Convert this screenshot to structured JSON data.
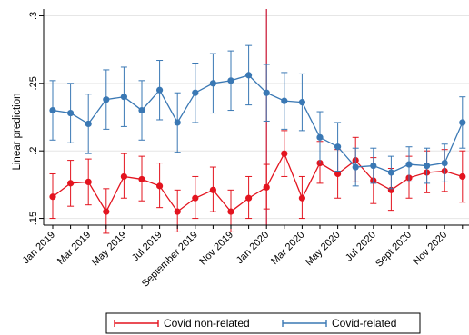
{
  "chart_data": {
    "type": "line",
    "title": "",
    "xlabel": "",
    "ylabel": "Linear prediction",
    "ylim": [
      0.145,
      0.305
    ],
    "yticks": [
      0.15,
      0.2,
      0.25,
      0.3
    ],
    "ytick_labels": [
      ".15",
      ".2",
      ".25",
      ".3"
    ],
    "x": [
      "Jan 2019",
      "Feb 2019",
      "Mar 2019",
      "Apr 2019",
      "May 2019",
      "Jun 2019",
      "Jul 2019",
      "Aug 2019",
      "September 2019",
      "Oct 2019",
      "Nov 2019",
      "Dec 2019",
      "Jan 2020",
      "Feb 2020",
      "Mar 2020",
      "Apr 2020",
      "May 2020",
      "Jun 2020",
      "Jul 2020",
      "Aug 2020",
      "Sept 2020",
      "Oct 2020",
      "Nov 2020",
      "Dec 2020"
    ],
    "xtick_labels": [
      "Jan 2019",
      "Mar 2019",
      "May 2019",
      "Jul 2019",
      "September 2019",
      "Nov 2019",
      "Jan 2020",
      "Mar 2020",
      "May 2020",
      "Jul 2020",
      "Sept 2020",
      "Nov 2020"
    ],
    "reference_line": {
      "x": "Jan 2020",
      "color": "#c8102e"
    },
    "grid": true,
    "legend_position": "bottom",
    "series": [
      {
        "name": "Covid non-related",
        "color": "#e3141f",
        "marker": "circle-filled",
        "values": [
          0.166,
          0.176,
          0.177,
          0.155,
          0.181,
          0.179,
          0.174,
          0.155,
          0.165,
          0.171,
          0.155,
          0.165,
          0.173,
          0.198,
          0.165,
          0.191,
          0.183,
          0.193,
          0.178,
          0.171,
          0.18,
          0.184,
          0.185,
          0.181
        ],
        "lower": [
          0.15,
          0.159,
          0.16,
          0.139,
          0.165,
          0.163,
          0.158,
          0.14,
          0.15,
          0.155,
          0.14,
          0.15,
          0.157,
          0.181,
          0.15,
          0.176,
          0.165,
          0.177,
          0.161,
          0.156,
          0.165,
          0.169,
          0.17,
          0.162
        ],
        "upper": [
          0.183,
          0.193,
          0.194,
          0.172,
          0.198,
          0.196,
          0.191,
          0.171,
          0.181,
          0.188,
          0.171,
          0.181,
          0.19,
          0.215,
          0.181,
          0.207,
          0.201,
          0.21,
          0.195,
          0.187,
          0.196,
          0.2,
          0.201,
          0.2
        ]
      },
      {
        "name": "Covid-related",
        "color": "#3a78b4",
        "marker": "circle-filled",
        "values": [
          0.23,
          0.228,
          0.22,
          0.238,
          0.24,
          0.23,
          0.245,
          0.221,
          0.243,
          0.25,
          0.252,
          0.256,
          0.243,
          0.237,
          0.236,
          0.21,
          0.203,
          0.188,
          0.189,
          0.184,
          0.19,
          0.189,
          0.191,
          0.221
        ],
        "lower": [
          0.208,
          0.206,
          0.198,
          0.216,
          0.218,
          0.208,
          0.223,
          0.199,
          0.221,
          0.228,
          0.23,
          0.234,
          0.222,
          0.216,
          0.215,
          0.191,
          0.185,
          0.174,
          0.176,
          0.172,
          0.177,
          0.176,
          0.177,
          0.202
        ],
        "upper": [
          0.252,
          0.25,
          0.242,
          0.26,
          0.262,
          0.252,
          0.267,
          0.243,
          0.265,
          0.272,
          0.274,
          0.278,
          0.264,
          0.258,
          0.257,
          0.229,
          0.221,
          0.202,
          0.202,
          0.196,
          0.203,
          0.202,
          0.205,
          0.24
        ]
      }
    ]
  }
}
